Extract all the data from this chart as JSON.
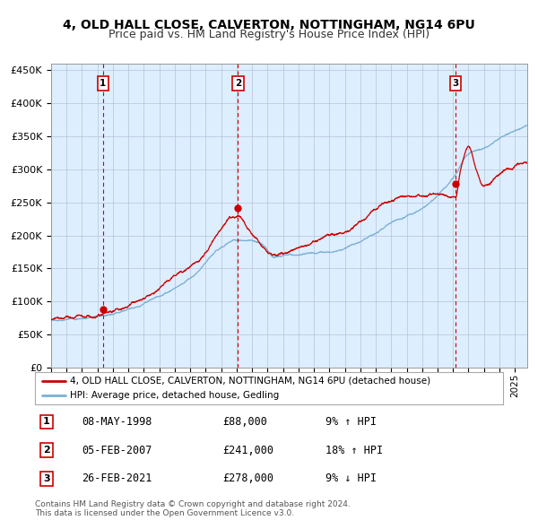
{
  "title": "4, OLD HALL CLOSE, CALVERTON, NOTTINGHAM, NG14 6PU",
  "subtitle": "Price paid vs. HM Land Registry's House Price Index (HPI)",
  "title_fontsize": 10,
  "subtitle_fontsize": 9,
  "background_color": "#ddeeff",
  "outer_bg_color": "#ffffff",
  "red_line_color": "#cc0000",
  "blue_line_color": "#7ab0d4",
  "vline_color": "#cc0000",
  "grid_color": "#b0b8d0",
  "purchases": [
    {
      "label": "1",
      "date_x": 1998.36,
      "price": 88000,
      "date_str": "08-MAY-1998",
      "pct": "9%",
      "dir": "↑"
    },
    {
      "label": "2",
      "date_x": 2007.09,
      "price": 241000,
      "date_str": "05-FEB-2007",
      "pct": "18%",
      "dir": "↑"
    },
    {
      "label": "3",
      "date_x": 2021.15,
      "price": 278000,
      "date_str": "26-FEB-2021",
      "pct": "9%",
      "dir": "↓"
    }
  ],
  "ylim": [
    0,
    460000
  ],
  "xlim_start": 1995.0,
  "xlim_end": 2025.8,
  "legend_line1": "4, OLD HALL CLOSE, CALVERTON, NOTTINGHAM, NG14 6PU (detached house)",
  "legend_line2": "HPI: Average price, detached house, Gedling",
  "footer_line1": "Contains HM Land Registry data © Crown copyright and database right 2024.",
  "footer_line2": "This data is licensed under the Open Government Licence v3.0."
}
